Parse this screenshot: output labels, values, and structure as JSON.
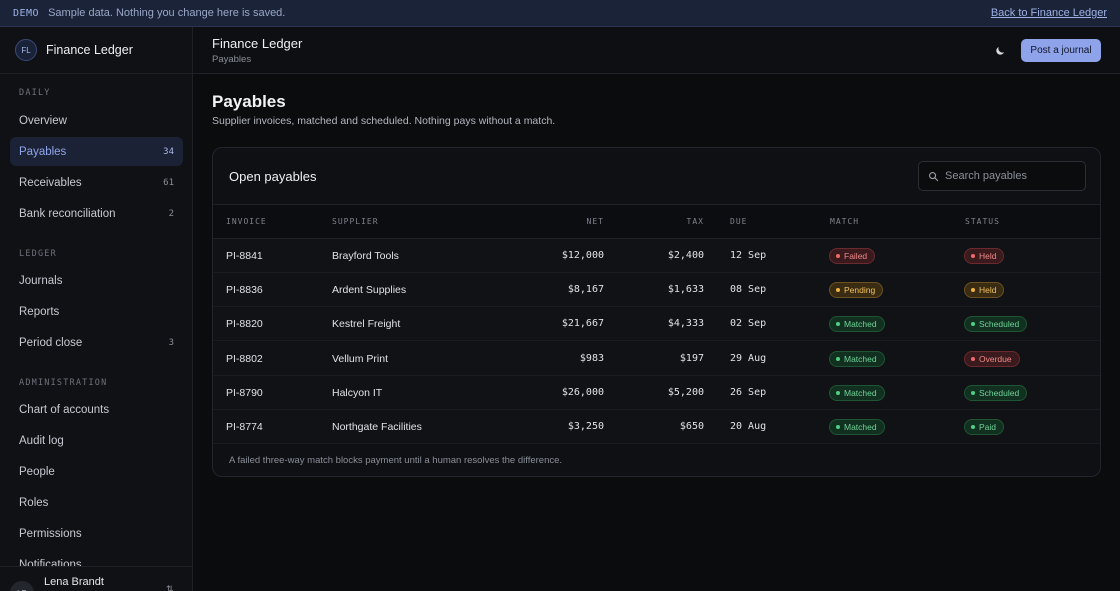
{
  "banner": {
    "tag": "DEMO",
    "message": "Sample data. Nothing you change here is saved.",
    "back_link": "Back to Finance Ledger"
  },
  "sidebar": {
    "brand": {
      "initials": "FL",
      "name": "Finance Ledger"
    },
    "sections": [
      {
        "label": "DAILY",
        "items": [
          {
            "label": "Overview",
            "count": ""
          },
          {
            "label": "Payables",
            "count": "34",
            "active": true
          },
          {
            "label": "Receivables",
            "count": "61"
          },
          {
            "label": "Bank reconciliation",
            "count": "2"
          }
        ]
      },
      {
        "label": "LEDGER",
        "items": [
          {
            "label": "Journals",
            "count": ""
          },
          {
            "label": "Reports",
            "count": ""
          },
          {
            "label": "Period close",
            "count": "3"
          }
        ]
      },
      {
        "label": "ADMINISTRATION",
        "items": [
          {
            "label": "Chart of accounts",
            "count": ""
          },
          {
            "label": "Audit log",
            "count": ""
          },
          {
            "label": "People",
            "count": ""
          },
          {
            "label": "Roles",
            "count": ""
          },
          {
            "label": "Permissions",
            "count": ""
          },
          {
            "label": "Notifications",
            "count": ""
          }
        ]
      }
    ],
    "user": {
      "initials": "LB",
      "name": "Lena Brandt",
      "switch_icon": "switch-icon"
    }
  },
  "topbar": {
    "title": "Finance Ledger",
    "breadcrumb": "Payables",
    "theme_icon": "moon-icon",
    "primary_button": "Post a journal"
  },
  "page": {
    "heading": "Payables",
    "subtitle": "Supplier invoices, matched and scheduled. Nothing pays without a match."
  },
  "table": {
    "title": "Open payables",
    "search_placeholder": "Search payables",
    "columns": [
      "INVOICE",
      "SUPPLIER",
      "NET",
      "TAX",
      "DUE",
      "MATCH",
      "STATUS"
    ],
    "rows": [
      {
        "invoice": "PI-8841",
        "supplier": "Brayford Tools",
        "net": "$12,000",
        "tax": "$2,400",
        "due": "12 Sep",
        "match": "Failed",
        "match_tone": "red",
        "status": "Held",
        "status_tone": "red"
      },
      {
        "invoice": "PI-8836",
        "supplier": "Ardent Supplies",
        "net": "$8,167",
        "tax": "$1,633",
        "due": "08 Sep",
        "match": "Pending",
        "match_tone": "amber",
        "status": "Held",
        "status_tone": "amber"
      },
      {
        "invoice": "PI-8820",
        "supplier": "Kestrel Freight",
        "net": "$21,667",
        "tax": "$4,333",
        "due": "02 Sep",
        "match": "Matched",
        "match_tone": "green",
        "status": "Scheduled",
        "status_tone": "green"
      },
      {
        "invoice": "PI-8802",
        "supplier": "Vellum Print",
        "net": "$983",
        "tax": "$197",
        "due": "29 Aug",
        "match": "Matched",
        "match_tone": "green",
        "status": "Overdue",
        "status_tone": "red"
      },
      {
        "invoice": "PI-8790",
        "supplier": "Halcyon IT",
        "net": "$26,000",
        "tax": "$5,200",
        "due": "26 Sep",
        "match": "Matched",
        "match_tone": "green",
        "status": "Scheduled",
        "status_tone": "green"
      },
      {
        "invoice": "PI-8774",
        "supplier": "Northgate Facilities",
        "net": "$3,250",
        "tax": "$650",
        "due": "20 Aug",
        "match": "Matched",
        "match_tone": "green",
        "status": "Paid",
        "status_tone": "green"
      }
    ],
    "footnote": "A failed three-way match blocks payment until a human resolves the difference."
  },
  "colors": {
    "accent": "#8ea3ea",
    "danger": "#ef6b6b",
    "warning": "#f0b340",
    "success": "#4fce86"
  }
}
